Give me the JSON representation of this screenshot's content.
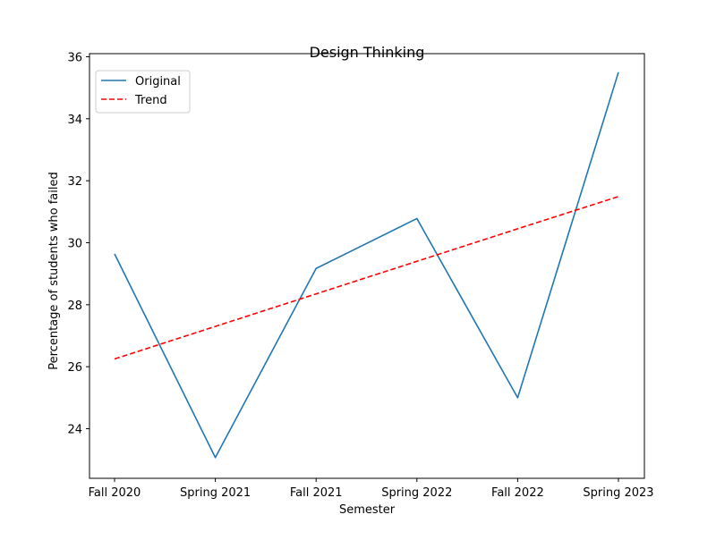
{
  "chart_data": {
    "type": "line",
    "title": "Design Thinking",
    "xlabel": "Semester",
    "ylabel": "Percentage of students who failed",
    "categories": [
      "Fall 2020",
      "Spring 2021",
      "Fall 2021",
      "Spring 2022",
      "Fall 2022",
      "Spring 2023"
    ],
    "ylim": [
      22.4,
      36.1
    ],
    "yticks": [
      24,
      26,
      28,
      30,
      32,
      34,
      36
    ],
    "grid": false,
    "legend_position": "upper-left",
    "series": [
      {
        "name": "Original",
        "style": "solid",
        "color": "#1f77b4",
        "values": [
          29.64,
          23.07,
          29.17,
          30.78,
          25.0,
          35.5
        ]
      },
      {
        "name": "Trend",
        "style": "dashed",
        "color": "#ff0000",
        "values": [
          26.25,
          27.3,
          28.35,
          29.4,
          30.45,
          31.49
        ]
      }
    ]
  }
}
